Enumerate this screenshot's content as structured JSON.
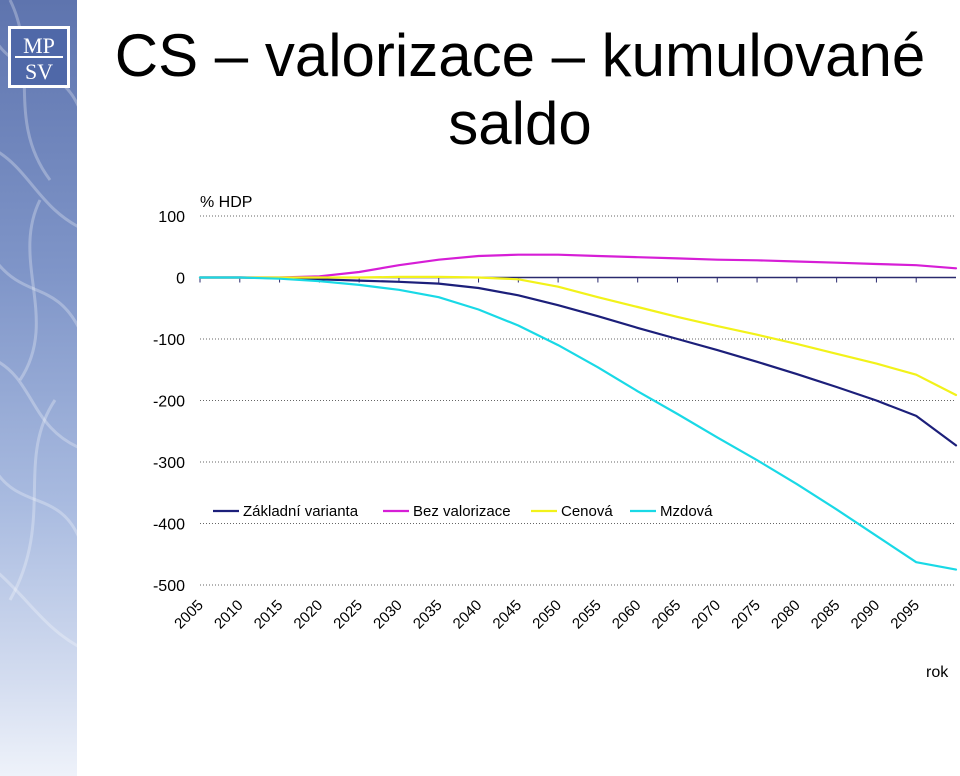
{
  "slide": {
    "title": "CS – valorizace – kumulované saldo",
    "logo_text": [
      "MP",
      "SV"
    ],
    "sidebar_color": "#6b82bd"
  },
  "chart_data": {
    "type": "line",
    "title": "",
    "ylabel": "% HDP",
    "xlabel": "rok",
    "ylim": [
      -500,
      100
    ],
    "xlim": [
      2005,
      2100
    ],
    "yticks": [
      100,
      0,
      -100,
      -200,
      -300,
      -400,
      -500
    ],
    "xticks": [
      2005,
      2010,
      2015,
      2020,
      2025,
      2030,
      2035,
      2040,
      2045,
      2050,
      2055,
      2060,
      2065,
      2070,
      2075,
      2080,
      2085,
      2090,
      2095
    ],
    "grid": "horizontal-dotted",
    "legend_position": "inside-lower-left",
    "x": [
      2005,
      2010,
      2015,
      2020,
      2025,
      2030,
      2035,
      2040,
      2045,
      2050,
      2055,
      2060,
      2065,
      2070,
      2075,
      2080,
      2085,
      2090,
      2095,
      2100
    ],
    "series": [
      {
        "name": "Základní varianta",
        "color": "#1c1f7a",
        "values": [
          0,
          0,
          -1,
          -3,
          -5,
          -7,
          -10,
          -17,
          -29,
          -45,
          -63,
          -82,
          -100,
          -118,
          -137,
          -157,
          -178,
          -200,
          -225,
          -273
        ]
      },
      {
        "name": "Bez valorizace",
        "color": "#d61ed6",
        "values": [
          0,
          0,
          0,
          2,
          9,
          20,
          29,
          35,
          37,
          37,
          35,
          33,
          31,
          29,
          28,
          26,
          24,
          22,
          20,
          15
        ]
      },
      {
        "name": "Cenová",
        "color": "#f2f21a",
        "values": [
          0,
          0,
          0,
          0,
          0,
          1,
          1,
          0,
          -3,
          -15,
          -32,
          -48,
          -64,
          -79,
          -93,
          -108,
          -124,
          -140,
          -158,
          -191
        ]
      },
      {
        "name": "Mzdová",
        "color": "#19d9e6",
        "values": [
          0,
          0,
          -2,
          -6,
          -12,
          -20,
          -32,
          -52,
          -78,
          -110,
          -146,
          -185,
          -222,
          -260,
          -297,
          -336,
          -377,
          -420,
          -463,
          -475
        ]
      }
    ]
  }
}
